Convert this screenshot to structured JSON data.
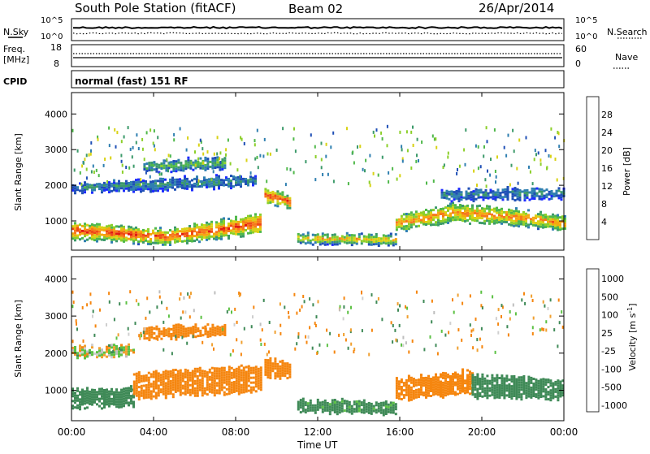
{
  "header": {
    "title": "South Pole Station (fitACF)",
    "beam": "Beam 02",
    "date": "26/Apr/2014"
  },
  "top_panels": {
    "nsky_label": "N.Sky",
    "nsky_ticks": [
      "10^5",
      "10^0"
    ],
    "nsearch_label": "N.Search",
    "nsearch_ticks": [
      "10^5",
      "10^0"
    ],
    "freq_label_1": "Freq.",
    "freq_label_2": "[MHz]",
    "freq_ticks": [
      "18",
      "8"
    ],
    "nave_label": "Nave",
    "nave_ticks": [
      "60",
      "0"
    ],
    "cpid_label": "CPID",
    "cpid_text": "normal (fast) 151 RF"
  },
  "colors": {
    "power_scale": [
      "#1e2cff",
      "#1f4fb6",
      "#2f7fb0",
      "#3c9a6a",
      "#4fb84a",
      "#8ccf2a",
      "#d8d214",
      "#f5a80f",
      "#f6781b",
      "#ef4a16",
      "#e11a12",
      "#c30f0f"
    ],
    "velocity_scale": [
      "#dd1414",
      "#f05a14",
      "#f5860f",
      "#f0a030",
      "#cfcfcf",
      "#bebebe",
      "#5cc144",
      "#3f8a57",
      "#1c5fa6",
      "#1f3fb2"
    ]
  },
  "chart_data": [
    {
      "type": "heatmap",
      "name": "power",
      "xlabel": "Time UT",
      "ylabel": "Slant Range [km]",
      "xticks": [
        "00:00",
        "04:00",
        "08:00",
        "12:00",
        "16:00",
        "20:00",
        "00:00"
      ],
      "yticks": [
        1000,
        2000,
        3000,
        4000
      ],
      "ylim": [
        180,
        4600
      ],
      "colorbar_label": "Power [dB]",
      "colorbar_ticks": [
        4,
        8,
        12,
        16,
        20,
        24,
        28
      ],
      "colorbar_range": [
        0,
        32
      ],
      "bands": [
        {
          "t0": 0.0,
          "t1": 9.2,
          "center": [
            700,
            520,
            900
          ],
          "width": [
            450,
            380,
            520
          ],
          "value": 26
        },
        {
          "t0": 9.4,
          "t1": 10.6,
          "center": [
            1700,
            1500
          ],
          "width": [
            420,
            300
          ],
          "value": 26
        },
        {
          "t0": 11.0,
          "t1": 15.8,
          "center": [
            480,
            440
          ],
          "width": [
            220,
            260
          ],
          "value": 20
        },
        {
          "t0": 15.8,
          "t1": 24.0,
          "center": [
            900,
            1200,
            1100,
            900
          ],
          "width": [
            420,
            500,
            400,
            380
          ],
          "value": 22
        },
        {
          "t0": 0.0,
          "t1": 9.0,
          "center": [
            1900,
            2000,
            2100
          ],
          "width": [
            220,
            300,
            260
          ],
          "value": 8
        },
        {
          "t0": 3.5,
          "t1": 7.5,
          "center": [
            2500,
            2600
          ],
          "width": [
            250,
            300
          ],
          "value": 12
        },
        {
          "t0": 18.0,
          "t1": 24.0,
          "center": [
            1700,
            1750
          ],
          "width": [
            260,
            260
          ],
          "value": 8
        }
      ]
    },
    {
      "type": "heatmap",
      "name": "velocity",
      "xlabel": "Time UT",
      "ylabel": "Slant Range [km]",
      "xticks": [
        "00:00",
        "04:00",
        "08:00",
        "12:00",
        "16:00",
        "20:00",
        "00:00"
      ],
      "yticks": [
        1000,
        2000,
        3000,
        4000
      ],
      "ylim": [
        180,
        4600
      ],
      "colorbar_label": "Velocity [m s^-1]",
      "colorbar_ticks": [
        1000,
        500,
        100,
        25,
        -25,
        -100,
        -500,
        -1000
      ],
      "bands": [
        {
          "t0": 0.0,
          "t1": 3.0,
          "center": [
            750,
            800
          ],
          "width": [
            500,
            450
          ],
          "value": 250
        },
        {
          "t0": 3.0,
          "t1": 9.2,
          "center": [
            1100,
            1300
          ],
          "width": [
            650,
            700
          ],
          "value": -300
        },
        {
          "t0": 9.4,
          "t1": 10.6,
          "center": [
            1600,
            1500
          ],
          "width": [
            500,
            400
          ],
          "value": -300
        },
        {
          "t0": 11.0,
          "t1": 15.8,
          "center": [
            550,
            500
          ],
          "width": [
            300,
            300
          ],
          "value": 200
        },
        {
          "t0": 15.8,
          "t1": 19.5,
          "center": [
            1000,
            1200
          ],
          "width": [
            550,
            600
          ],
          "value": -300
        },
        {
          "t0": 19.5,
          "t1": 24.0,
          "center": [
            1100,
            1000
          ],
          "width": [
            600,
            500
          ],
          "value": 250
        },
        {
          "t0": 0.0,
          "t1": 3.0,
          "center": [
            2000,
            2050
          ],
          "width": [
            250,
            220
          ],
          "value": 0
        },
        {
          "t0": 3.5,
          "t1": 7.5,
          "center": [
            2500,
            2600
          ],
          "width": [
            300,
            300
          ],
          "value": -300
        }
      ]
    }
  ]
}
